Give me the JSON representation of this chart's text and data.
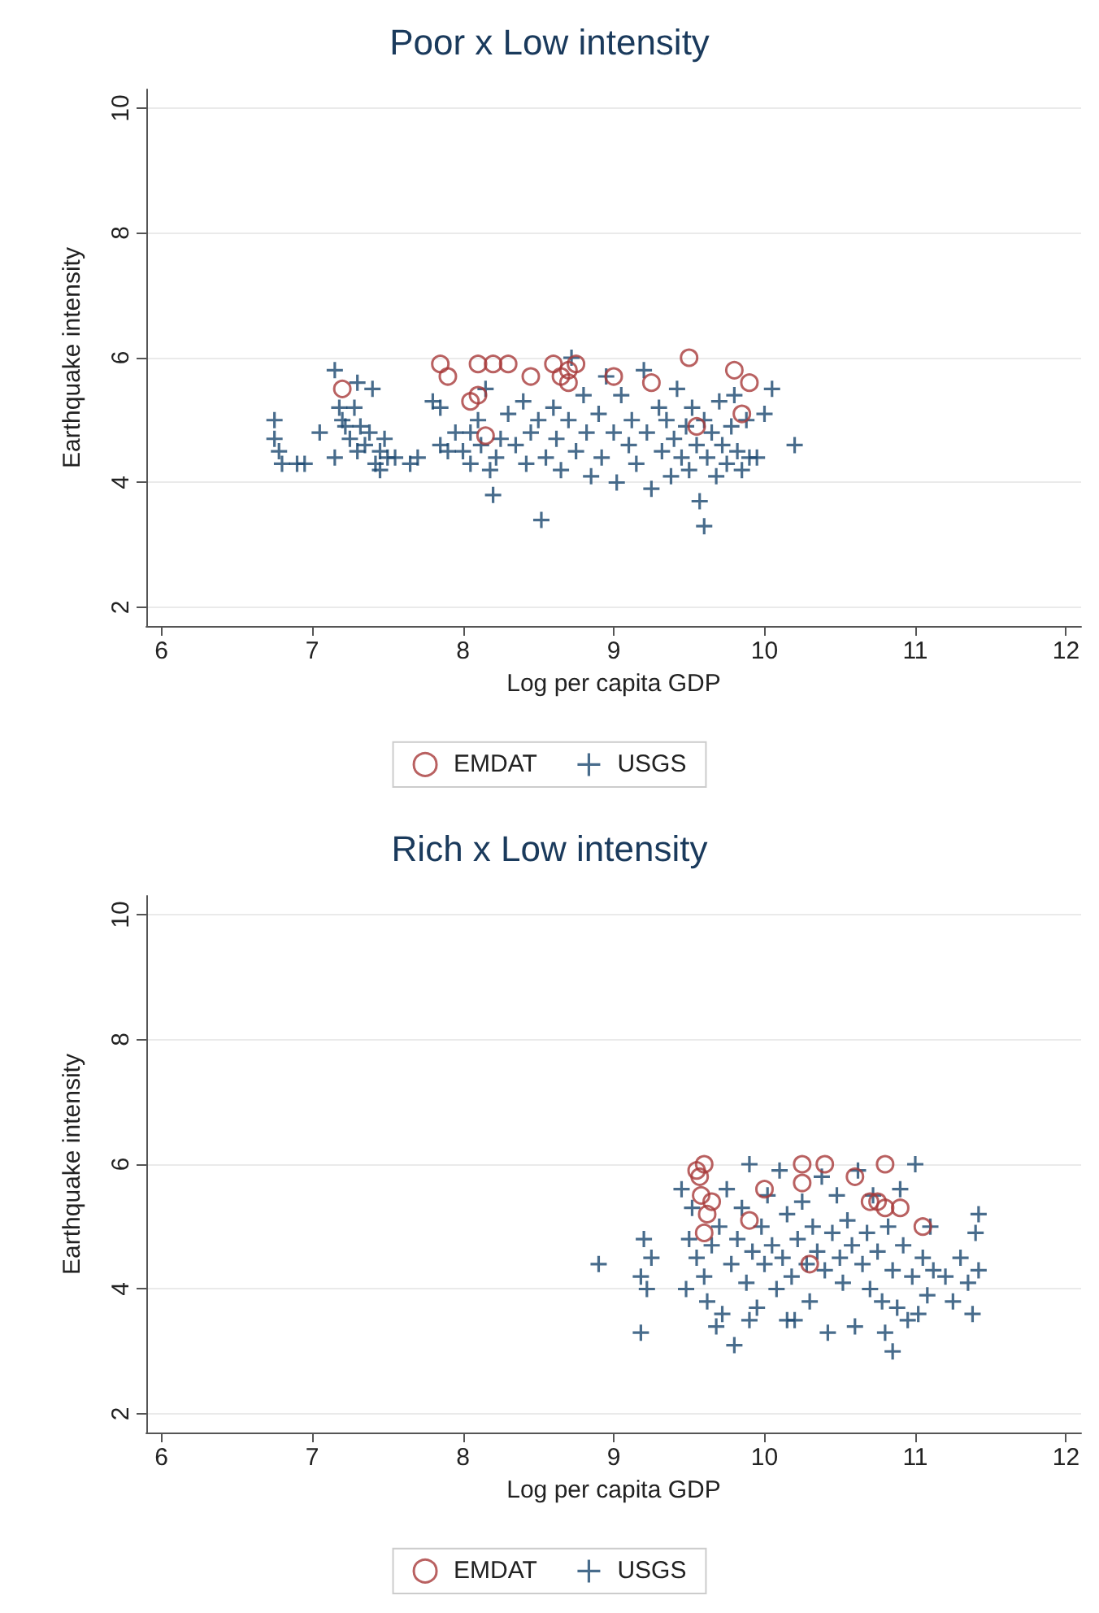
{
  "chart_data": [
    {
      "type": "scatter",
      "title": "Poor x Low intensity",
      "xlabel": "Log per capita GDP",
      "ylabel": "Earthquake intensity",
      "xlim": [
        5.9,
        12.1
      ],
      "ylim": [
        1.7,
        10.3
      ],
      "xticks": [
        6,
        7,
        8,
        9,
        10,
        11,
        12
      ],
      "yticks": [
        2,
        4,
        6,
        8,
        10
      ],
      "grid": "y",
      "legend": "bottom",
      "series": [
        {
          "name": "EMDAT",
          "color": "#a83a3a",
          "marker": "circle",
          "x": [
            7.2,
            7.85,
            7.9,
            8.05,
            8.1,
            8.1,
            8.2,
            8.15,
            8.3,
            8.45,
            8.6,
            8.65,
            8.7,
            8.7,
            8.75,
            9.0,
            9.25,
            9.5,
            9.8,
            9.85,
            9.9,
            9.55
          ],
          "values": [
            5.5,
            5.9,
            5.7,
            5.3,
            5.4,
            5.9,
            5.9,
            4.75,
            5.9,
            5.7,
            5.9,
            5.7,
            5.6,
            5.8,
            5.9,
            5.7,
            5.6,
            6.0,
            5.8,
            5.1,
            5.6,
            4.9
          ]
        },
        {
          "name": "USGS",
          "color": "#1a476f",
          "marker": "cross",
          "x": [
            6.75,
            6.75,
            6.78,
            6.8,
            6.9,
            6.95,
            7.05,
            7.15,
            7.15,
            7.18,
            7.2,
            7.22,
            7.25,
            7.28,
            7.3,
            7.3,
            7.32,
            7.35,
            7.38,
            7.4,
            7.42,
            7.45,
            7.45,
            7.48,
            7.5,
            7.55,
            7.65,
            7.7,
            7.8,
            7.85,
            7.85,
            7.9,
            7.95,
            8.0,
            8.05,
            8.05,
            8.1,
            8.12,
            8.15,
            8.18,
            8.2,
            8.22,
            8.25,
            8.3,
            8.35,
            8.4,
            8.42,
            8.45,
            8.5,
            8.52,
            8.55,
            8.6,
            8.62,
            8.65,
            8.7,
            8.72,
            8.75,
            8.8,
            8.82,
            8.85,
            8.9,
            8.92,
            8.95,
            9.0,
            9.02,
            9.05,
            9.1,
            9.12,
            9.15,
            9.2,
            9.22,
            9.25,
            9.3,
            9.32,
            9.35,
            9.38,
            9.4,
            9.42,
            9.45,
            9.48,
            9.5,
            9.52,
            9.55,
            9.57,
            9.6,
            9.6,
            9.62,
            9.65,
            9.68,
            9.7,
            9.72,
            9.75,
            9.78,
            9.8,
            9.82,
            9.85,
            9.88,
            9.9,
            9.95,
            10.0,
            10.05,
            10.2
          ],
          "values": [
            5.0,
            4.7,
            4.5,
            4.3,
            4.3,
            4.3,
            4.8,
            4.4,
            5.8,
            5.2,
            5.0,
            4.9,
            4.7,
            5.2,
            5.6,
            4.5,
            4.9,
            4.6,
            4.8,
            5.5,
            4.3,
            4.2,
            4.5,
            4.7,
            4.4,
            4.4,
            4.3,
            4.4,
            5.3,
            5.2,
            4.6,
            4.5,
            4.8,
            4.5,
            4.8,
            4.3,
            5.0,
            4.6,
            5.5,
            4.2,
            3.8,
            4.4,
            4.7,
            5.1,
            4.6,
            5.3,
            4.3,
            4.8,
            5.0,
            3.4,
            4.4,
            5.2,
            4.7,
            4.2,
            5.0,
            6.0,
            4.5,
            5.4,
            4.8,
            4.1,
            5.1,
            4.4,
            5.7,
            4.8,
            4.0,
            5.4,
            4.6,
            5.0,
            4.3,
            5.8,
            4.8,
            3.9,
            5.2,
            4.5,
            5.0,
            4.1,
            4.7,
            5.5,
            4.4,
            4.9,
            4.2,
            5.2,
            4.6,
            3.7,
            5.0,
            3.3,
            4.4,
            4.8,
            4.1,
            5.3,
            4.6,
            4.3,
            4.9,
            5.4,
            4.5,
            4.2,
            5.0,
            4.4,
            4.4,
            5.1,
            5.5,
            4.6
          ]
        }
      ]
    },
    {
      "type": "scatter",
      "title": "Rich x Low intensity",
      "xlabel": "Log per capita GDP",
      "ylabel": "Earthquake intensity",
      "xlim": [
        5.9,
        12.1
      ],
      "ylim": [
        1.7,
        10.3
      ],
      "xticks": [
        6,
        7,
        8,
        9,
        10,
        11,
        12
      ],
      "yticks": [
        2,
        4,
        6,
        8,
        10
      ],
      "grid": "y",
      "legend": "bottom",
      "series": [
        {
          "name": "EMDAT",
          "color": "#a83a3a",
          "marker": "circle",
          "x": [
            9.55,
            9.57,
            9.6,
            9.58,
            9.62,
            9.6,
            9.65,
            9.9,
            10.0,
            10.25,
            10.25,
            10.4,
            10.6,
            10.7,
            10.75,
            10.8,
            10.8,
            10.9,
            11.05,
            10.3
          ],
          "values": [
            5.9,
            5.8,
            6.0,
            5.5,
            5.2,
            4.9,
            5.4,
            5.1,
            5.6,
            6.0,
            5.7,
            6.0,
            5.8,
            5.4,
            5.4,
            6.0,
            5.3,
            5.3,
            5.0,
            4.4
          ]
        },
        {
          "name": "USGS",
          "color": "#1a476f",
          "marker": "cross",
          "x": [
            8.9,
            9.18,
            9.18,
            9.2,
            9.22,
            9.25,
            9.45,
            9.48,
            9.5,
            9.52,
            9.55,
            9.6,
            9.62,
            9.65,
            9.68,
            9.7,
            9.72,
            9.75,
            9.78,
            9.8,
            9.82,
            9.85,
            9.88,
            9.9,
            9.92,
            9.95,
            9.98,
            10.0,
            10.02,
            10.05,
            10.08,
            10.1,
            10.12,
            10.15,
            10.18,
            10.2,
            10.22,
            10.25,
            10.28,
            10.3,
            10.32,
            10.35,
            10.38,
            10.4,
            10.42,
            10.45,
            10.48,
            10.5,
            10.52,
            10.55,
            10.58,
            10.6,
            10.62,
            10.65,
            10.68,
            10.7,
            10.72,
            10.75,
            10.78,
            10.8,
            10.82,
            10.85,
            10.88,
            10.9,
            10.92,
            10.95,
            10.98,
            11.0,
            11.02,
            11.05,
            11.08,
            11.1,
            11.12,
            11.2,
            11.25,
            11.3,
            11.35,
            11.38,
            11.4,
            11.42,
            11.42,
            10.85,
            10.15,
            9.9
          ],
          "values": [
            4.4,
            3.3,
            4.2,
            4.8,
            4.0,
            4.5,
            5.6,
            4.0,
            4.8,
            5.3,
            4.5,
            4.2,
            3.8,
            4.7,
            3.4,
            5.0,
            3.6,
            5.6,
            4.4,
            3.1,
            4.8,
            5.3,
            4.1,
            6.0,
            4.6,
            3.7,
            5.0,
            4.4,
            5.5,
            4.7,
            4.0,
            5.9,
            4.5,
            5.2,
            4.2,
            3.5,
            4.8,
            5.4,
            4.4,
            3.8,
            5.0,
            4.6,
            5.8,
            4.3,
            3.3,
            4.9,
            5.5,
            4.5,
            4.1,
            5.1,
            4.7,
            3.4,
            5.9,
            4.4,
            4.9,
            4.0,
            5.5,
            4.6,
            3.8,
            3.3,
            5.0,
            4.3,
            3.7,
            5.6,
            4.7,
            3.5,
            4.2,
            6.0,
            3.6,
            4.5,
            3.9,
            5.0,
            4.3,
            4.2,
            3.8,
            4.5,
            4.1,
            3.6,
            4.9,
            5.2,
            4.3,
            3.0,
            3.5,
            3.5
          ]
        }
      ]
    }
  ]
}
